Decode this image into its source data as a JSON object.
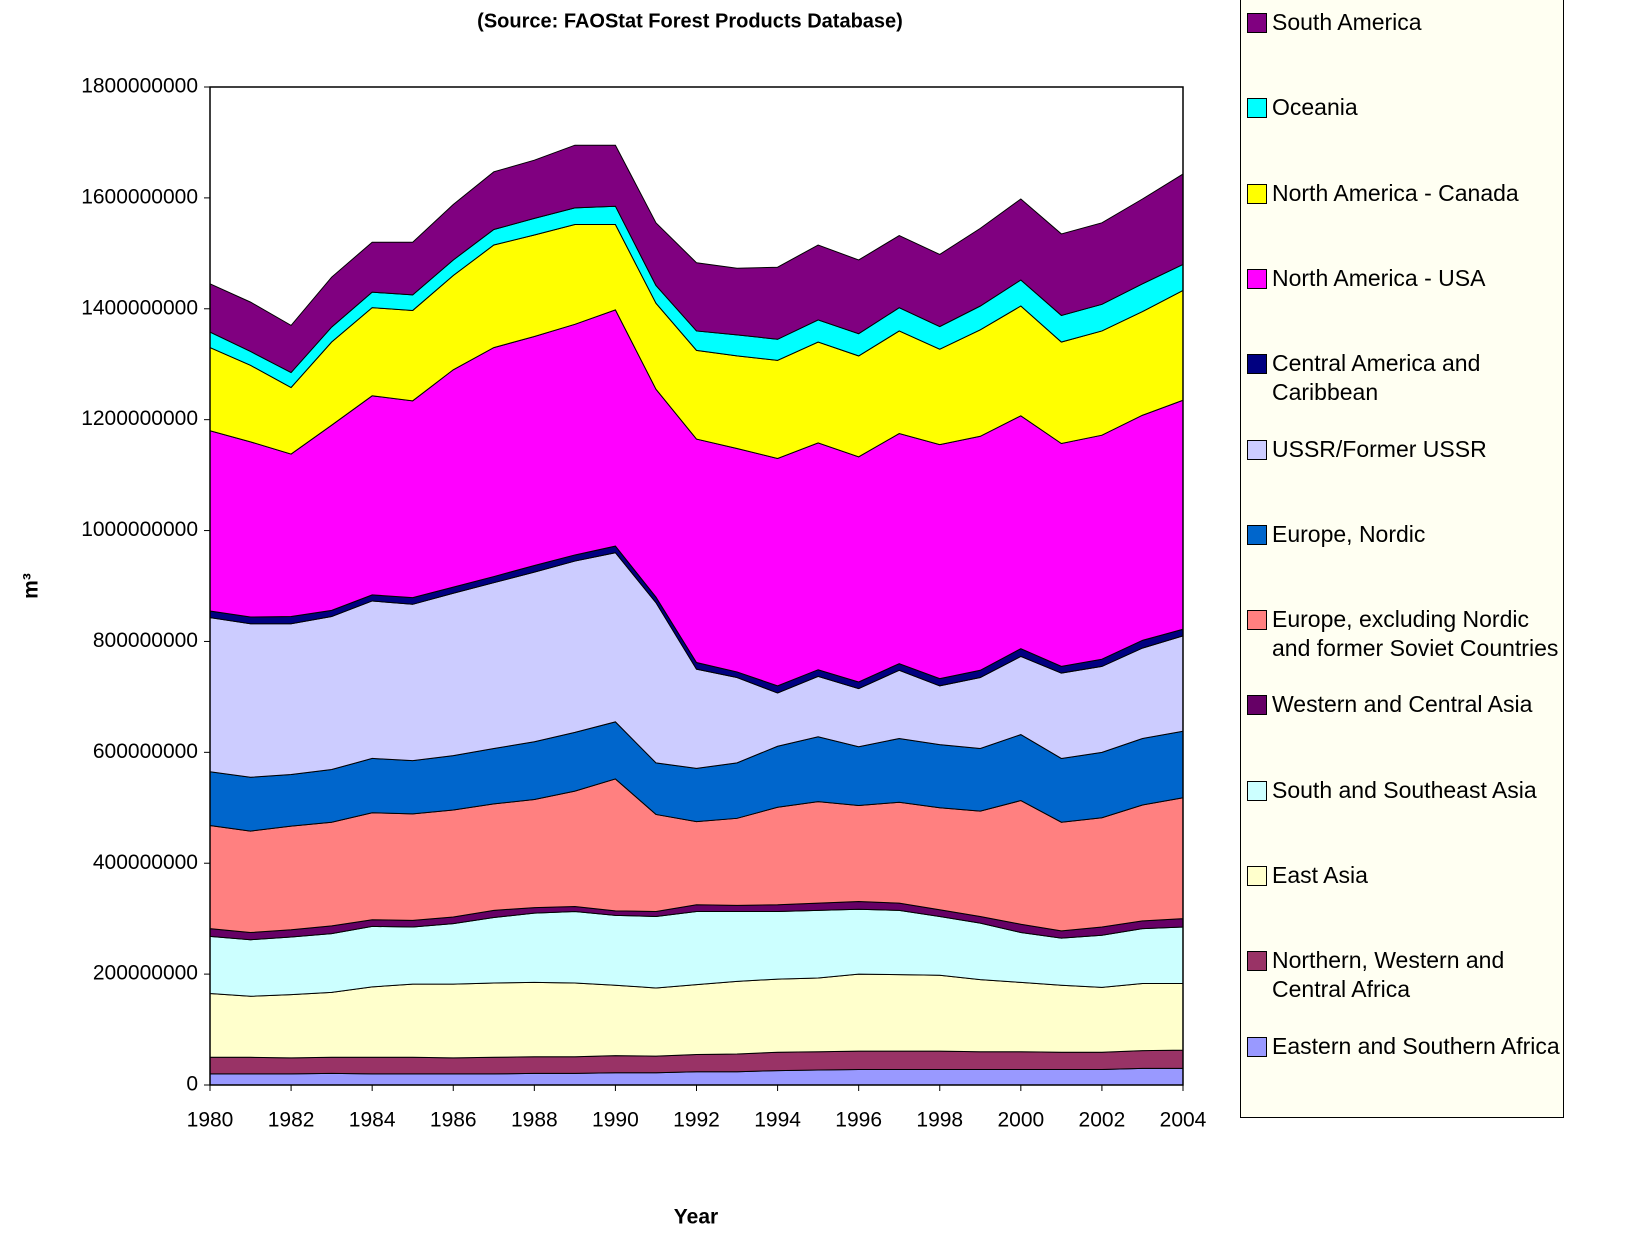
{
  "chart_data": {
    "type": "stacked_area",
    "title": "(Source: FAOStat Forest Products Database)",
    "x_label": "Year",
    "y_label": "m³",
    "x": [
      1980,
      1981,
      1982,
      1983,
      1984,
      1985,
      1986,
      1987,
      1988,
      1989,
      1990,
      1991,
      1992,
      1993,
      1994,
      1995,
      1996,
      1997,
      1998,
      1999,
      2000,
      2001,
      2002,
      2003,
      2004
    ],
    "xlim": [
      1980,
      2004
    ],
    "xticks": [
      1980,
      1982,
      1984,
      1986,
      1988,
      1990,
      1992,
      1994,
      1996,
      1998,
      2000,
      2002,
      2004
    ],
    "ylim": [
      0,
      1800000000
    ],
    "yticks": [
      0,
      200000000,
      400000000,
      600000000,
      800000000,
      1000000000,
      1200000000,
      1400000000,
      1600000000,
      1800000000
    ],
    "series": [
      {
        "name": "Eastern and Southern Africa",
        "color": "#9999ff",
        "values": [
          20000000,
          20000000,
          20000000,
          21000000,
          20000000,
          20000000,
          20000000,
          20000000,
          21000000,
          21000000,
          22000000,
          22000000,
          24000000,
          24000000,
          26000000,
          27000000,
          28000000,
          28000000,
          28000000,
          28000000,
          28000000,
          28000000,
          28000000,
          30000000,
          30000000
        ]
      },
      {
        "name": "Northern, Western and Central Africa",
        "color": "#993366",
        "values": [
          30000000,
          30000000,
          29000000,
          29000000,
          30000000,
          30000000,
          29000000,
          30000000,
          30000000,
          30000000,
          31000000,
          30000000,
          31000000,
          32000000,
          33000000,
          33000000,
          33000000,
          33000000,
          33000000,
          32000000,
          32000000,
          31000000,
          31000000,
          32000000,
          33000000
        ]
      },
      {
        "name": "East Asia",
        "color": "#ffffcc",
        "values": [
          115000000,
          110000000,
          114000000,
          117000000,
          127000000,
          132000000,
          133000000,
          134000000,
          134000000,
          133000000,
          127000000,
          123000000,
          126000000,
          131000000,
          132000000,
          133000000,
          139000000,
          138000000,
          137000000,
          130000000,
          125000000,
          121000000,
          117000000,
          121000000,
          120000000
        ]
      },
      {
        "name": "South and Southeast Asia",
        "color": "#ccffff",
        "values": [
          103000000,
          102000000,
          104000000,
          106000000,
          109000000,
          103000000,
          109000000,
          118000000,
          125000000,
          129000000,
          126000000,
          129000000,
          132000000,
          126000000,
          122000000,
          122000000,
          117000000,
          116000000,
          106000000,
          102000000,
          90000000,
          85000000,
          94000000,
          99000000,
          102000000
        ]
      },
      {
        "name": "Western and Central Asia",
        "color": "#660066",
        "values": [
          14000000,
          13000000,
          13000000,
          14000000,
          12000000,
          12000000,
          12000000,
          13000000,
          10000000,
          9000000,
          8000000,
          9000000,
          12000000,
          11000000,
          12000000,
          13000000,
          14000000,
          13000000,
          12000000,
          12000000,
          15000000,
          13000000,
          15000000,
          14000000,
          15000000
        ]
      },
      {
        "name": "Europe, excluding Nordic and former Soviet Countries",
        "color": "#ff8080",
        "values": [
          186000000,
          183000000,
          187000000,
          187000000,
          193000000,
          192000000,
          193000000,
          192000000,
          195000000,
          208000000,
          238000000,
          175000000,
          150000000,
          157000000,
          176000000,
          183000000,
          173000000,
          182000000,
          184000000,
          190000000,
          223000000,
          196000000,
          197000000,
          209000000,
          218000000
        ]
      },
      {
        "name": "Europe, Nordic",
        "color": "#0066cc",
        "values": [
          97000000,
          97000000,
          93000000,
          95000000,
          98000000,
          96000000,
          98000000,
          100000000,
          104000000,
          106000000,
          103000000,
          93000000,
          96000000,
          100000000,
          110000000,
          117000000,
          106000000,
          115000000,
          114000000,
          113000000,
          119000000,
          115000000,
          118000000,
          120000000,
          120000000
        ]
      },
      {
        "name": "USSR/Former USSR",
        "color": "#ccccff",
        "values": [
          278000000,
          277000000,
          272000000,
          276000000,
          284000000,
          282000000,
          293000000,
          299000000,
          306000000,
          309000000,
          305000000,
          289000000,
          179000000,
          154000000,
          96000000,
          109000000,
          105000000,
          123000000,
          106000000,
          128000000,
          141000000,
          154000000,
          155000000,
          163000000,
          172000000
        ]
      },
      {
        "name": "Central America and Caribbean",
        "color": "#000080",
        "values": [
          12000000,
          12000000,
          13000000,
          11000000,
          11000000,
          12000000,
          11000000,
          11000000,
          12000000,
          11000000,
          12000000,
          10000000,
          12000000,
          10000000,
          13000000,
          12000000,
          12000000,
          12000000,
          13000000,
          13000000,
          14000000,
          12000000,
          13000000,
          14000000,
          12000000
        ]
      },
      {
        "name": "North America - USA",
        "color": "#ff00ff",
        "values": [
          325000000,
          316000000,
          293000000,
          334000000,
          359000000,
          355000000,
          392000000,
          413000000,
          413000000,
          416000000,
          426000000,
          375000000,
          403000000,
          403000000,
          410000000,
          409000000,
          406000000,
          415000000,
          422000000,
          422000000,
          420000000,
          402000000,
          404000000,
          406000000,
          413000000
        ]
      },
      {
        "name": "North America - Canada",
        "color": "#ffff00",
        "values": [
          150000000,
          138000000,
          120000000,
          150000000,
          159000000,
          163000000,
          170000000,
          185000000,
          183000000,
          180000000,
          154000000,
          155000000,
          160000000,
          167000000,
          177000000,
          182000000,
          182000000,
          185000000,
          172000000,
          192000000,
          198000000,
          183000000,
          188000000,
          187000000,
          198000000
        ]
      },
      {
        "name": "Oceania",
        "color": "#00ffff",
        "values": [
          28000000,
          25000000,
          27000000,
          27000000,
          28000000,
          28000000,
          28000000,
          28000000,
          30000000,
          30000000,
          33000000,
          32000000,
          35000000,
          38000000,
          38000000,
          40000000,
          40000000,
          42000000,
          41000000,
          43000000,
          47000000,
          48000000,
          48000000,
          50000000,
          47000000
        ]
      },
      {
        "name": "South America",
        "color": "#800080",
        "values": [
          87000000,
          89000000,
          85000000,
          90000000,
          90000000,
          95000000,
          100000000,
          104000000,
          105000000,
          113000000,
          110000000,
          113000000,
          123000000,
          120000000,
          130000000,
          135000000,
          133000000,
          130000000,
          130000000,
          140000000,
          146000000,
          147000000,
          147000000,
          153000000,
          163000000
        ]
      }
    ]
  }
}
